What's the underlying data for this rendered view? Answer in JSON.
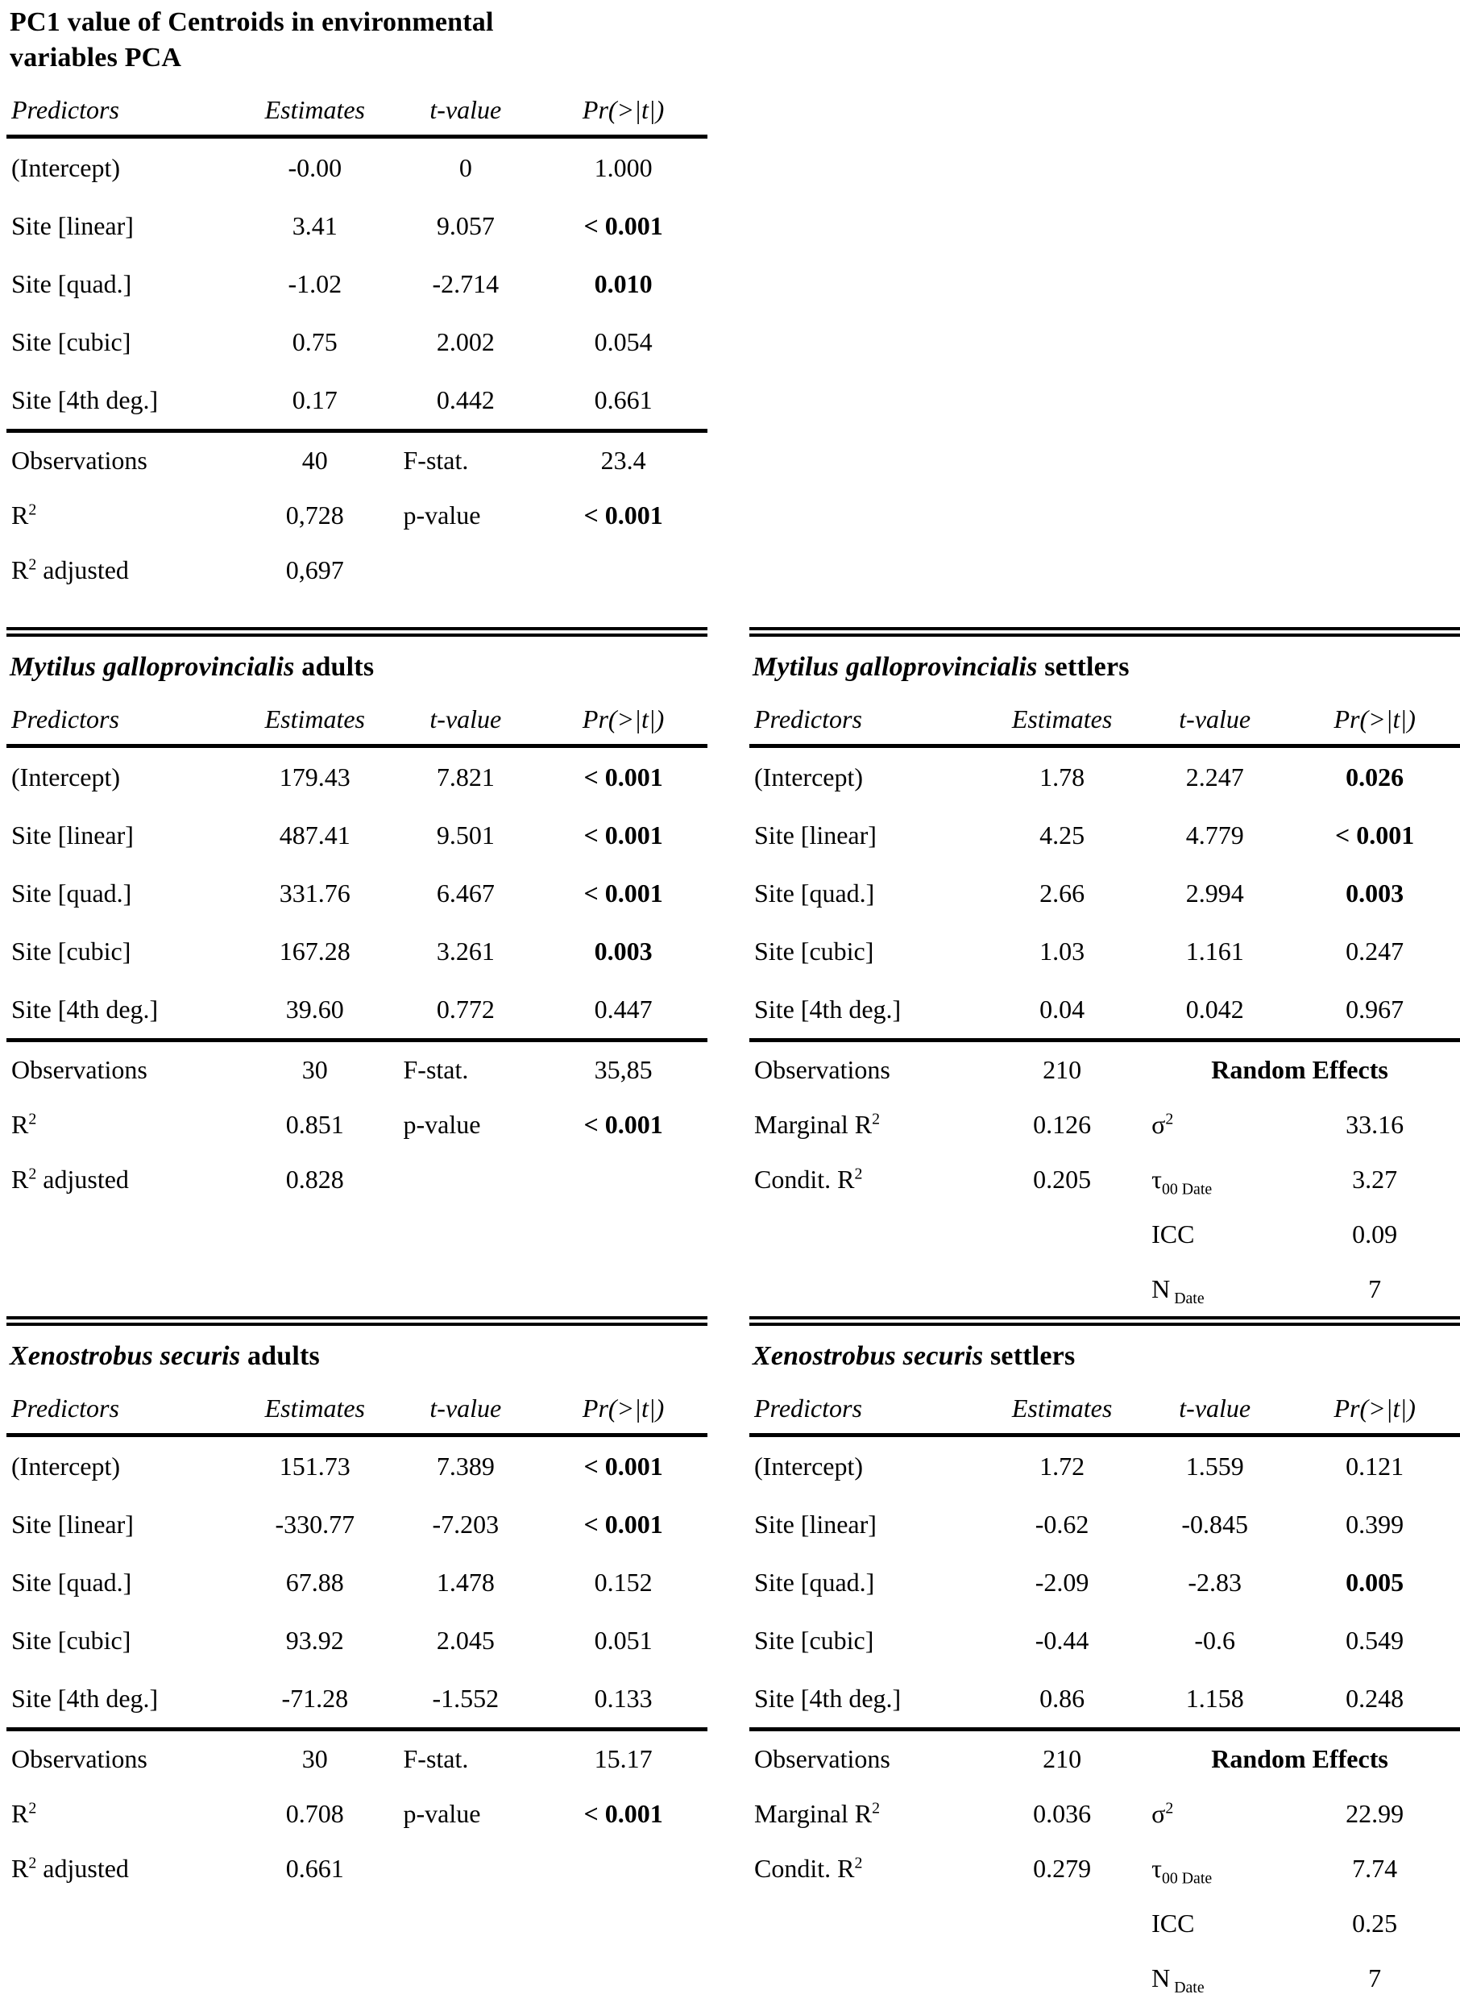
{
  "page": {
    "background_color": "#ffffff",
    "text_color": "#000000",
    "description": "Five regression summary tables"
  },
  "labels": {
    "predictors": "Predictors",
    "estimates": "Estimates",
    "t_value": "t-value",
    "pr": "Pr(>|t|)",
    "observations": "Observations",
    "f_stat": "F-stat.",
    "p_value": "p-value",
    "r2_base": "R",
    "sup2": "2",
    "adjusted_suffix": " adjusted",
    "marginal_r2_base": "Marginal R",
    "condit_r2_base": "Condit. R",
    "random_effects": "Random Effects",
    "sigma_base": "σ",
    "tau_base": "τ",
    "tau_sub": "00 Date",
    "icc": "ICC",
    "n_base": "N",
    "n_sub": "Date"
  },
  "tables": {
    "pca": {
      "title_line1": "PC1 value of Centroids in environmental",
      "title_line2": "variables PCA",
      "rows": [
        {
          "pred": "(Intercept)",
          "est": "-0.00",
          "t": "0",
          "p": "1.000"
        },
        {
          "pred": "Site [linear]",
          "est": "3.41",
          "t": "9.057",
          "p": "< 0.001"
        },
        {
          "pred": "Site [quad.]",
          "est": "-1.02",
          "t": "-2.714",
          "p": "0.010"
        },
        {
          "pred": "Site [cubic]",
          "est": "0.75",
          "t": "2.002",
          "p": "0.054"
        },
        {
          "pred": "Site [4th deg.]",
          "est": "0.17",
          "t": "0.442",
          "p": "0.661"
        }
      ],
      "summary": {
        "observations": "40",
        "f_stat": "23.4",
        "r2": "0,728",
        "p_value": "< 0.001",
        "r2_adjusted": "0,697"
      }
    },
    "myt_adults": {
      "title_species": "Mytilus galloprovincialis",
      "title_suffix": " adults",
      "rows": [
        {
          "pred": "(Intercept)",
          "est": "179.43",
          "t": "7.821",
          "p": "< 0.001"
        },
        {
          "pred": "Site [linear]",
          "est": "487.41",
          "t": "9.501",
          "p": "< 0.001"
        },
        {
          "pred": "Site [quad.]",
          "est": "331.76",
          "t": "6.467",
          "p": "< 0.001"
        },
        {
          "pred": "Site [cubic]",
          "est": "167.28",
          "t": "3.261",
          "p": "0.003"
        },
        {
          "pred": "Site [4th deg.]",
          "est": "39.60",
          "t": "0.772",
          "p": "0.447"
        }
      ],
      "summary": {
        "observations": "30",
        "f_stat": "35,85",
        "r2": "0.851",
        "p_value": "< 0.001",
        "r2_adjusted": "0.828"
      }
    },
    "myt_settlers": {
      "title_species": "Mytilus galloprovincialis",
      "title_suffix": " settlers",
      "rows": [
        {
          "pred": "(Intercept)",
          "est": "1.78",
          "t": "2.247",
          "p": "0.026"
        },
        {
          "pred": "Site [linear]",
          "est": "4.25",
          "t": "4.779",
          "p": "< 0.001"
        },
        {
          "pred": "Site [quad.]",
          "est": "2.66",
          "t": "2.994",
          "p": "0.003"
        },
        {
          "pred": "Site [cubic]",
          "est": "1.03",
          "t": "1.161",
          "p": "0.247"
        },
        {
          "pred": "Site [4th deg.]",
          "est": "0.04",
          "t": "0.042",
          "p": "0.967"
        }
      ],
      "summary": {
        "observations": "210",
        "marginal_r2": "0.126",
        "sigma2": "33.16",
        "condit_r2": "0.205",
        "tau00": "3.27",
        "icc": "0.09",
        "n_date": "7"
      }
    },
    "xen_adults": {
      "title_species": "Xenostrobus securis",
      "title_suffix": " adults",
      "rows": [
        {
          "pred": "(Intercept)",
          "est": "151.73",
          "t": "7.389",
          "p": "< 0.001"
        },
        {
          "pred": "Site [linear]",
          "est": "-330.77",
          "t": "-7.203",
          "p": "< 0.001"
        },
        {
          "pred": "Site [quad.]",
          "est": "67.88",
          "t": "1.478",
          "p": "0.152"
        },
        {
          "pred": "Site [cubic]",
          "est": "93.92",
          "t": "2.045",
          "p": "0.051"
        },
        {
          "pred": "Site [4th deg.]",
          "est": "-71.28",
          "t": "-1.552",
          "p": "0.133"
        }
      ],
      "summary": {
        "observations": "30",
        "f_stat": "15.17",
        "r2": "0.708",
        "p_value": "< 0.001",
        "r2_adjusted": "0.661"
      }
    },
    "xen_settlers": {
      "title_species": "Xenostrobus securis",
      "title_suffix": " settlers",
      "rows": [
        {
          "pred": "(Intercept)",
          "est": "1.72",
          "t": "1.559",
          "p": "0.121"
        },
        {
          "pred": "Site [linear]",
          "est": "-0.62",
          "t": "-0.845",
          "p": "0.399"
        },
        {
          "pred": "Site [quad.]",
          "est": "-2.09",
          "t": "-2.83",
          "p": "0.005"
        },
        {
          "pred": "Site [cubic]",
          "est": "-0.44",
          "t": "-0.6",
          "p": "0.549"
        },
        {
          "pred": "Site [4th deg.]",
          "est": "0.86",
          "t": "1.158",
          "p": "0.248"
        }
      ],
      "summary": {
        "observations": "210",
        "marginal_r2": "0.036",
        "sigma2": "22.99",
        "condit_r2": "0.279",
        "tau00": "7.74",
        "icc": "0.25",
        "n_date": "7"
      }
    }
  }
}
